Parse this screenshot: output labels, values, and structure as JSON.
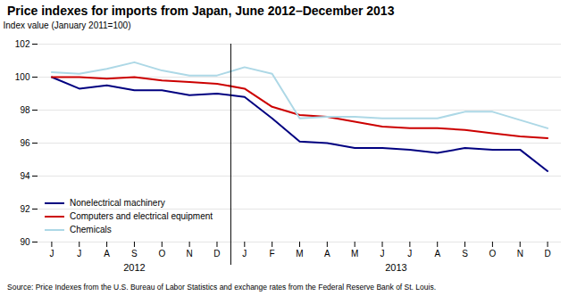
{
  "chart_data": {
    "type": "line",
    "title": "Price indexes for imports from Japan, June 2012–December 2013",
    "ylabel": "Index value (January 2011=100)",
    "source": "Source: Price Indexes from the U.S. Bureau of Labor Statistics and exchange rates from the Federal Reserve Bank of St. Louis.",
    "categories": [
      "J",
      "J",
      "A",
      "S",
      "O",
      "N",
      "D",
      "J",
      "F",
      "M",
      "A",
      "M",
      "J",
      "J",
      "A",
      "S",
      "O",
      "N",
      "D"
    ],
    "x_groups": [
      {
        "label": "2012",
        "count": 7
      },
      {
        "label": "2013",
        "count": 12
      }
    ],
    "series": [
      {
        "name": "Nonelectrical machinery",
        "color": "#000080",
        "values": [
          100.0,
          99.3,
          99.5,
          99.2,
          99.2,
          98.9,
          99.0,
          98.8,
          97.5,
          96.1,
          96.0,
          95.7,
          95.7,
          95.6,
          95.4,
          95.7,
          95.6,
          95.6,
          94.3
        ]
      },
      {
        "name": "Computers and electrical equipment",
        "color": "#cc0000",
        "values": [
          100.0,
          100.0,
          99.9,
          100.0,
          99.8,
          99.7,
          99.6,
          99.3,
          98.2,
          97.7,
          97.6,
          97.3,
          97.0,
          96.9,
          96.9,
          96.8,
          96.6,
          96.4,
          96.3
        ]
      },
      {
        "name": "Chemicals",
        "color": "#add8e6",
        "values": [
          100.3,
          100.2,
          100.5,
          100.9,
          100.4,
          100.1,
          100.1,
          100.6,
          100.2,
          97.5,
          97.6,
          97.6,
          97.5,
          97.5,
          97.5,
          97.9,
          97.9,
          97.4,
          96.9
        ]
      }
    ],
    "ylim": [
      90.0,
      102.0
    ],
    "yticks": [
      90.0,
      92.0,
      94.0,
      96.0,
      98.0,
      100.0,
      102.0
    ],
    "grid": true,
    "legend": "lower left"
  }
}
